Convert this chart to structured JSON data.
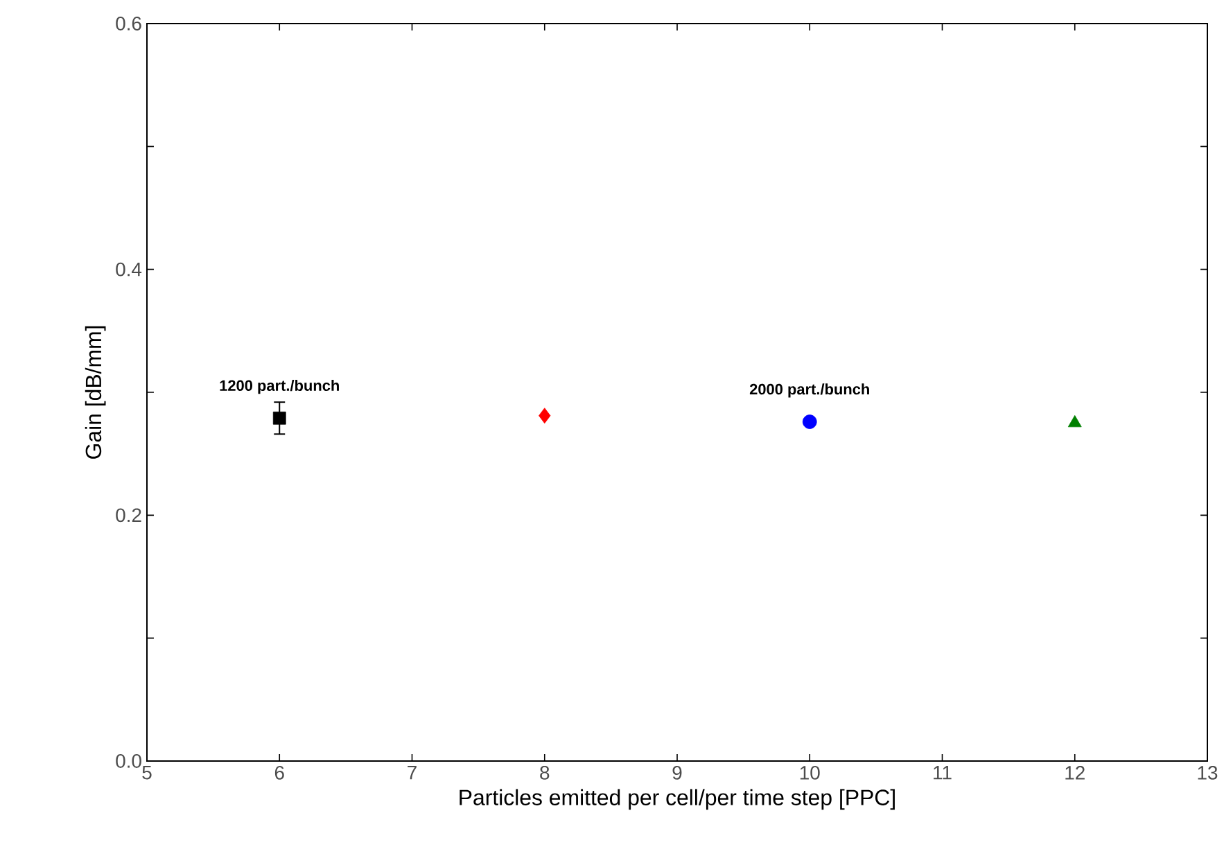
{
  "chart_data": {
    "type": "scatter",
    "xlabel": "Particles emitted per cell/per time step [PPC]",
    "ylabel": "Gain [dB/mm]",
    "xlim": [
      5,
      13
    ],
    "xticks": [
      5,
      6,
      7,
      8,
      9,
      10,
      11,
      12,
      13
    ],
    "ylim": [
      0,
      0.6
    ],
    "yticks": [
      {
        "value": 0,
        "label": "0.0"
      },
      {
        "value": 0.1,
        "label": null
      },
      {
        "value": 0.2,
        "label": "0.2"
      },
      {
        "value": 0.3,
        "label": null
      },
      {
        "value": 0.4,
        "label": "0.4"
      },
      {
        "value": 0.5,
        "label": null
      },
      {
        "value": 0.6,
        "label": "0.6"
      }
    ],
    "grid": false,
    "series": [
      {
        "color": "#000000",
        "marker": "square",
        "x": [
          6
        ],
        "values": [
          0.279
        ],
        "errors": [
          0.013
        ]
      },
      {
        "color": "#ff0000",
        "marker": "diamond",
        "x": [
          8
        ],
        "values": [
          0.281
        ]
      },
      {
        "color": "#0000ff",
        "marker": "circle",
        "x": [
          10
        ],
        "values": [
          0.276
        ]
      },
      {
        "color": "#008000",
        "marker": "triangle",
        "x": [
          12
        ],
        "values": [
          0.275
        ]
      }
    ],
    "annotations": [
      {
        "text": "1200 part./bunch",
        "x": 6,
        "y": 0.279
      },
      {
        "text": "2000 part./bunch",
        "x": 10,
        "y": 0.276
      }
    ]
  }
}
